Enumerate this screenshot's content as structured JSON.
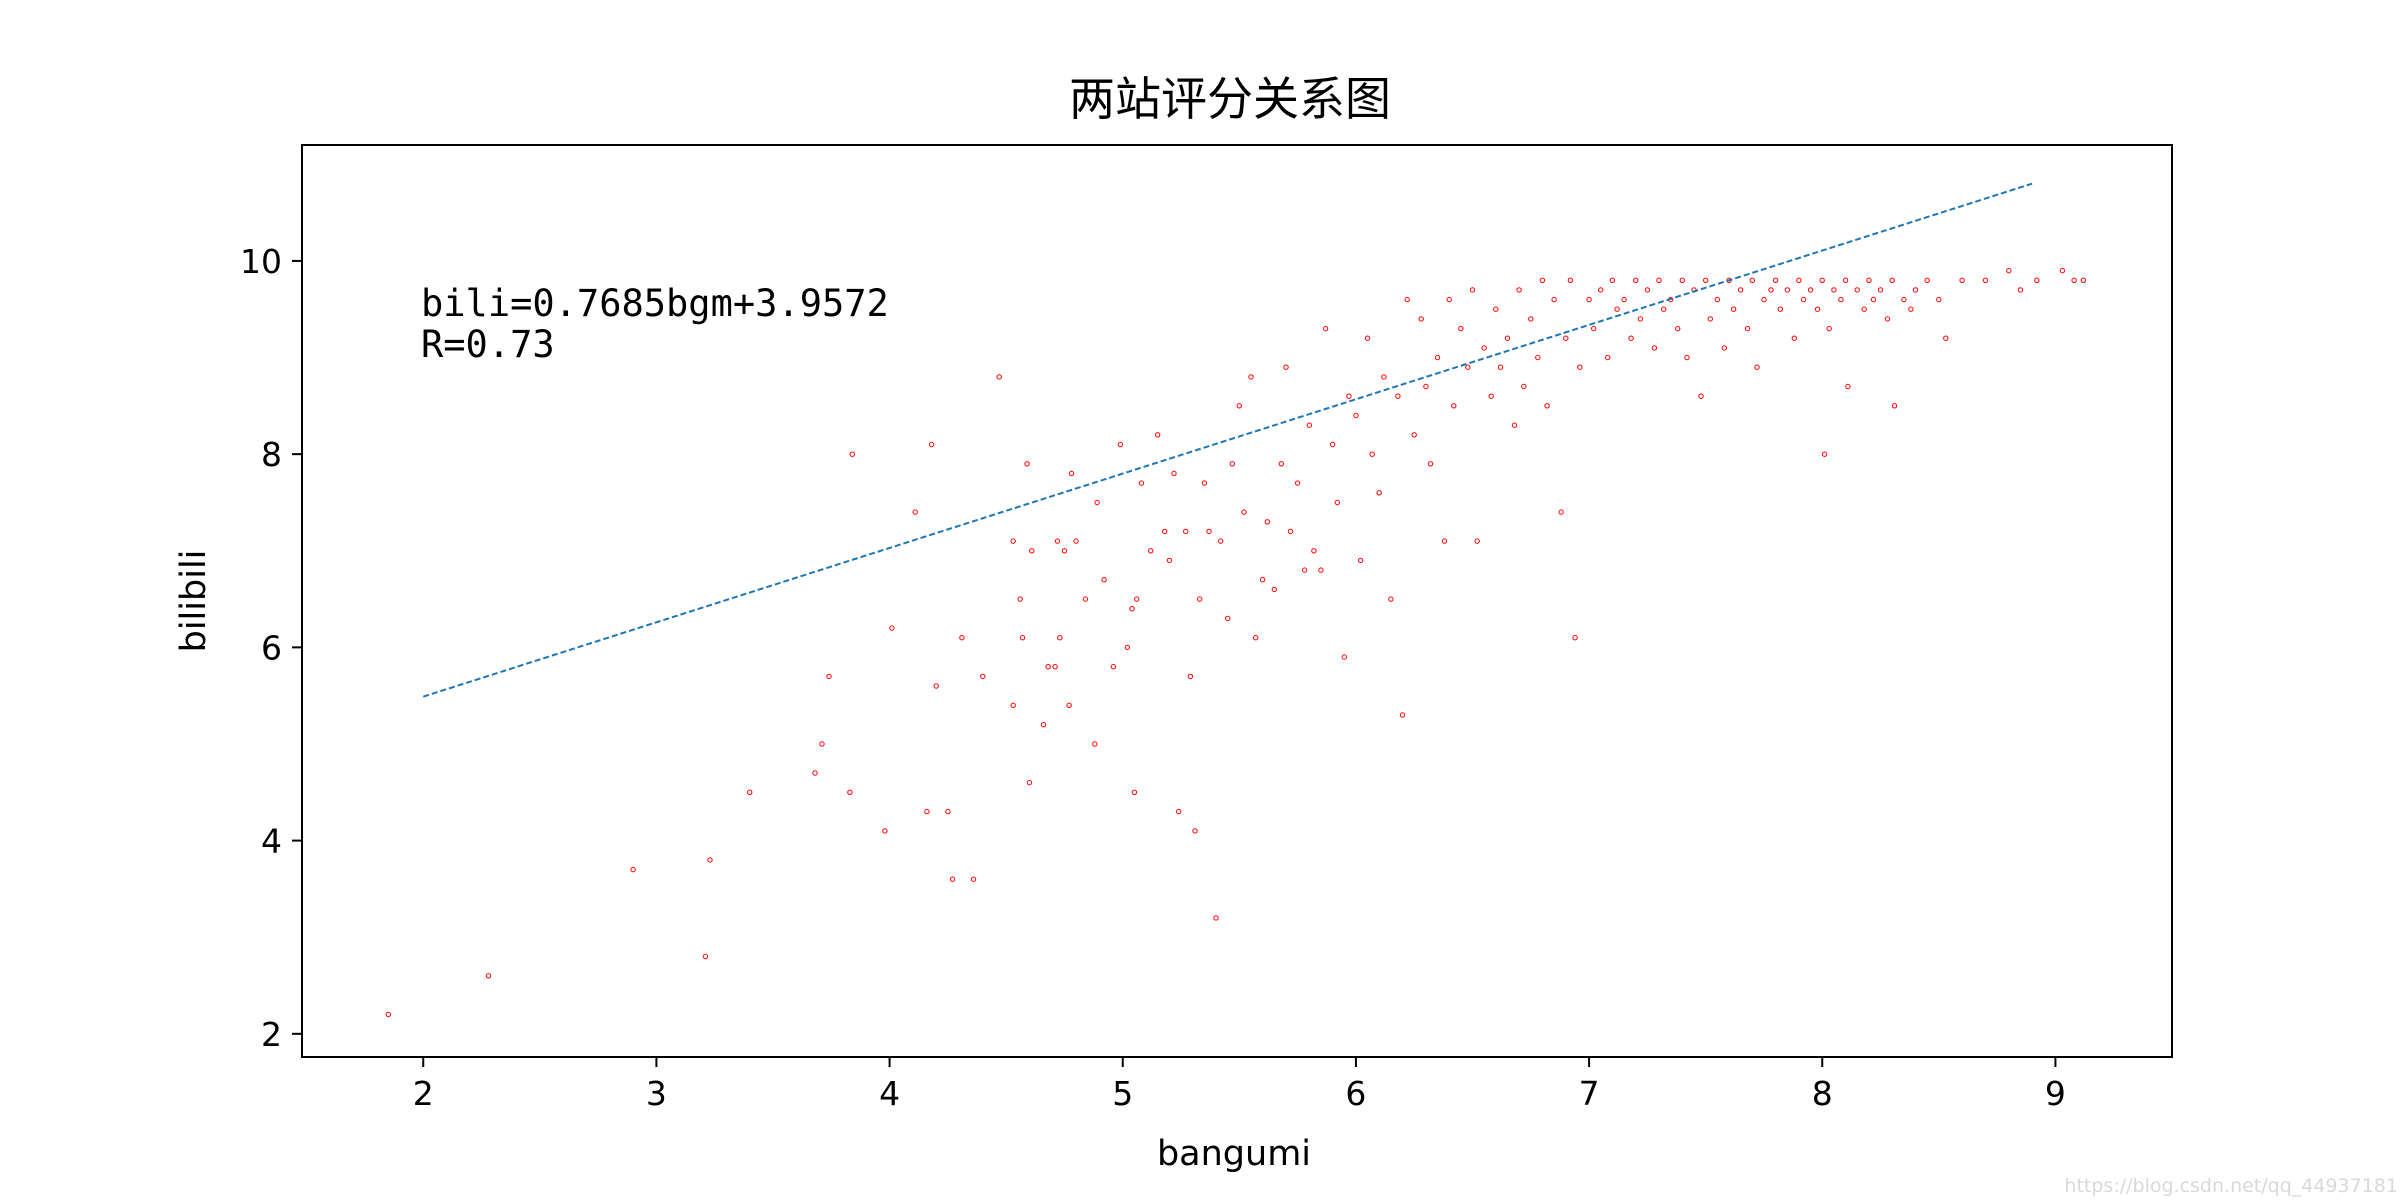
{
  "chart_data": {
    "type": "scatter",
    "title": "两站评分关系图",
    "xlabel": "bangumi",
    "ylabel": "bilibili",
    "xlim": [
      1.48,
      9.5
    ],
    "ylim": [
      1.76,
      11.2
    ],
    "xticks": [
      2,
      3,
      4,
      5,
      6,
      7,
      8,
      9
    ],
    "yticks": [
      2,
      4,
      6,
      8,
      10
    ],
    "grid": false,
    "legend": "none",
    "annotations": [
      "bili=0.7685bgm+3.9572",
      "R=0.73"
    ],
    "series": [
      {
        "kind": "points",
        "color": "#ff0000",
        "points": [
          [
            1.85,
            2.2
          ],
          [
            2.28,
            2.6
          ],
          [
            2.9,
            3.7
          ],
          [
            3.21,
            2.8
          ],
          [
            3.23,
            3.8
          ],
          [
            3.4,
            4.5
          ],
          [
            3.68,
            4.7
          ],
          [
            3.71,
            5.0
          ],
          [
            3.74,
            5.7
          ],
          [
            3.83,
            4.5
          ],
          [
            3.84,
            8.0
          ],
          [
            3.98,
            4.1
          ],
          [
            4.01,
            6.2
          ],
          [
            4.11,
            7.4
          ],
          [
            4.16,
            4.3
          ],
          [
            4.18,
            8.1
          ],
          [
            4.2,
            5.6
          ],
          [
            4.25,
            4.3
          ],
          [
            4.27,
            3.6
          ],
          [
            4.31,
            6.1
          ],
          [
            4.36,
            3.6
          ],
          [
            4.4,
            5.7
          ],
          [
            4.47,
            8.8
          ],
          [
            4.53,
            5.4
          ],
          [
            4.53,
            7.1
          ],
          [
            4.56,
            6.5
          ],
          [
            4.57,
            6.1
          ],
          [
            4.59,
            7.9
          ],
          [
            4.6,
            4.6
          ],
          [
            4.61,
            7.0
          ],
          [
            4.66,
            5.2
          ],
          [
            4.68,
            5.8
          ],
          [
            4.71,
            5.8
          ],
          [
            4.72,
            7.1
          ],
          [
            4.73,
            6.1
          ],
          [
            4.75,
            7.0
          ],
          [
            4.77,
            5.4
          ],
          [
            4.78,
            7.8
          ],
          [
            4.8,
            7.1
          ],
          [
            4.84,
            6.5
          ],
          [
            4.88,
            5.0
          ],
          [
            4.89,
            7.5
          ],
          [
            4.92,
            6.7
          ],
          [
            4.96,
            5.8
          ],
          [
            4.99,
            8.1
          ],
          [
            5.02,
            6.0
          ],
          [
            5.04,
            6.4
          ],
          [
            5.05,
            4.5
          ],
          [
            5.06,
            6.5
          ],
          [
            5.08,
            7.7
          ],
          [
            5.12,
            7.0
          ],
          [
            5.15,
            8.2
          ],
          [
            5.18,
            7.2
          ],
          [
            5.2,
            6.9
          ],
          [
            5.22,
            7.8
          ],
          [
            5.24,
            4.3
          ],
          [
            5.27,
            7.2
          ],
          [
            5.29,
            5.7
          ],
          [
            5.31,
            4.1
          ],
          [
            5.33,
            6.5
          ],
          [
            5.35,
            7.7
          ],
          [
            5.37,
            7.2
          ],
          [
            5.4,
            3.2
          ],
          [
            5.42,
            7.1
          ],
          [
            5.45,
            6.3
          ],
          [
            5.47,
            7.9
          ],
          [
            5.5,
            8.5
          ],
          [
            5.52,
            7.4
          ],
          [
            5.55,
            8.8
          ],
          [
            5.57,
            6.1
          ],
          [
            5.6,
            6.7
          ],
          [
            5.62,
            7.3
          ],
          [
            5.65,
            6.6
          ],
          [
            5.68,
            7.9
          ],
          [
            5.7,
            8.9
          ],
          [
            5.72,
            7.2
          ],
          [
            5.75,
            7.7
          ],
          [
            5.78,
            6.8
          ],
          [
            5.8,
            8.3
          ],
          [
            5.82,
            7.0
          ],
          [
            5.85,
            6.8
          ],
          [
            5.87,
            9.3
          ],
          [
            5.9,
            8.1
          ],
          [
            5.92,
            7.5
          ],
          [
            5.95,
            5.9
          ],
          [
            5.97,
            8.6
          ],
          [
            6.0,
            8.4
          ],
          [
            6.02,
            6.9
          ],
          [
            6.05,
            9.2
          ],
          [
            6.07,
            8.0
          ],
          [
            6.1,
            7.6
          ],
          [
            6.12,
            8.8
          ],
          [
            6.15,
            6.5
          ],
          [
            6.18,
            8.6
          ],
          [
            6.2,
            5.3
          ],
          [
            6.22,
            9.6
          ],
          [
            6.25,
            8.2
          ],
          [
            6.28,
            9.4
          ],
          [
            6.3,
            8.7
          ],
          [
            6.32,
            7.9
          ],
          [
            6.35,
            9.0
          ],
          [
            6.38,
            7.1
          ],
          [
            6.4,
            9.6
          ],
          [
            6.42,
            8.5
          ],
          [
            6.45,
            9.3
          ],
          [
            6.48,
            8.9
          ],
          [
            6.5,
            9.7
          ],
          [
            6.52,
            7.1
          ],
          [
            6.55,
            9.1
          ],
          [
            6.58,
            8.6
          ],
          [
            6.6,
            9.5
          ],
          [
            6.62,
            8.9
          ],
          [
            6.65,
            9.2
          ],
          [
            6.68,
            8.3
          ],
          [
            6.7,
            9.7
          ],
          [
            6.72,
            8.7
          ],
          [
            6.75,
            9.4
          ],
          [
            6.78,
            9.0
          ],
          [
            6.8,
            9.8
          ],
          [
            6.82,
            8.5
          ],
          [
            6.85,
            9.6
          ],
          [
            6.88,
            7.4
          ],
          [
            6.9,
            9.2
          ],
          [
            6.92,
            9.8
          ],
          [
            6.94,
            6.1
          ],
          [
            6.96,
            8.9
          ],
          [
            7.0,
            9.6
          ],
          [
            7.02,
            9.3
          ],
          [
            7.05,
            9.7
          ],
          [
            7.08,
            9.0
          ],
          [
            7.1,
            9.8
          ],
          [
            7.12,
            9.5
          ],
          [
            7.15,
            9.6
          ],
          [
            7.18,
            9.2
          ],
          [
            7.2,
            9.8
          ],
          [
            7.22,
            9.4
          ],
          [
            7.25,
            9.7
          ],
          [
            7.28,
            9.1
          ],
          [
            7.3,
            9.8
          ],
          [
            7.32,
            9.5
          ],
          [
            7.35,
            9.6
          ],
          [
            7.38,
            9.3
          ],
          [
            7.4,
            9.8
          ],
          [
            7.42,
            9.0
          ],
          [
            7.45,
            9.7
          ],
          [
            7.48,
            8.6
          ],
          [
            7.5,
            9.8
          ],
          [
            7.52,
            9.4
          ],
          [
            7.55,
            9.6
          ],
          [
            7.58,
            9.1
          ],
          [
            7.6,
            9.8
          ],
          [
            7.62,
            9.5
          ],
          [
            7.65,
            9.7
          ],
          [
            7.68,
            9.3
          ],
          [
            7.7,
            9.8
          ],
          [
            7.72,
            8.9
          ],
          [
            7.75,
            9.6
          ],
          [
            7.78,
            9.7
          ],
          [
            7.8,
            9.8
          ],
          [
            7.82,
            9.5
          ],
          [
            7.85,
            9.7
          ],
          [
            7.88,
            9.2
          ],
          [
            7.9,
            9.8
          ],
          [
            7.92,
            9.6
          ],
          [
            7.95,
            9.7
          ],
          [
            7.98,
            9.5
          ],
          [
            8.0,
            9.8
          ],
          [
            8.01,
            8.0
          ],
          [
            8.03,
            9.3
          ],
          [
            8.05,
            9.7
          ],
          [
            8.08,
            9.6
          ],
          [
            8.1,
            9.8
          ],
          [
            8.11,
            8.7
          ],
          [
            8.15,
            9.7
          ],
          [
            8.18,
            9.5
          ],
          [
            8.2,
            9.8
          ],
          [
            8.22,
            9.6
          ],
          [
            8.25,
            9.7
          ],
          [
            8.28,
            9.4
          ],
          [
            8.3,
            9.8
          ],
          [
            8.31,
            8.5
          ],
          [
            8.35,
            9.6
          ],
          [
            8.38,
            9.5
          ],
          [
            8.4,
            9.7
          ],
          [
            8.45,
            9.8
          ],
          [
            8.5,
            9.6
          ],
          [
            8.53,
            9.2
          ],
          [
            8.6,
            9.8
          ],
          [
            8.7,
            9.8
          ],
          [
            8.8,
            9.9
          ],
          [
            8.85,
            9.7
          ],
          [
            8.92,
            9.8
          ],
          [
            9.03,
            9.9
          ],
          [
            9.08,
            9.8
          ],
          [
            9.12,
            9.8
          ]
        ]
      },
      {
        "kind": "fit-line",
        "color": "#1f77b4",
        "style": "dashed",
        "x": [
          2.0,
          8.9
        ],
        "y": [
          5.49,
          10.8
        ]
      }
    ]
  },
  "watermark": "https://blog.csdn.net/qq_44937181"
}
